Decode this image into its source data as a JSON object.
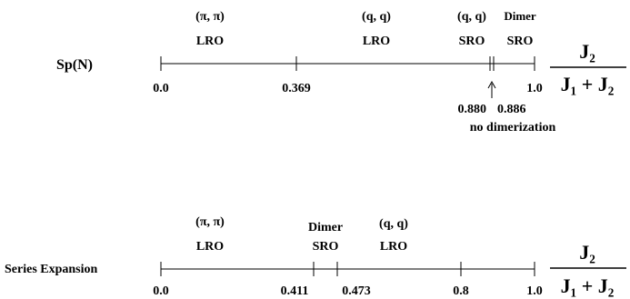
{
  "top": {
    "title": "Sp(N)",
    "regions": [
      {
        "line1": "(π, π)",
        "line2": "LRO"
      },
      {
        "line1": "(q, q)",
        "line2": "LRO"
      },
      {
        "line1": "(q, q)",
        "line2": "SRO"
      },
      {
        "line1": "Dimer",
        "line2": "SRO"
      }
    ],
    "ticks": [
      "0.0",
      "0.369",
      "1.0"
    ],
    "inset_ticks": [
      "0.880",
      "0.886"
    ],
    "note": "no dimerization",
    "axis_fraction": {
      "numerator": "J₂",
      "denominator": "J₁ + J₂"
    }
  },
  "bottom": {
    "title": "Series Expansion",
    "regions": [
      {
        "line1": "(π, π)",
        "line2": "LRO"
      },
      {
        "line1": "Dimer",
        "line2": "SRO"
      },
      {
        "line1": "(q, q)",
        "line2": "LRO"
      }
    ],
    "ticks": [
      "0.0",
      "0.411",
      "0.473",
      "0.8",
      "1.0"
    ],
    "axis_fraction": {
      "numerator": "J₂",
      "denominator": "J₁ + J₂"
    }
  }
}
